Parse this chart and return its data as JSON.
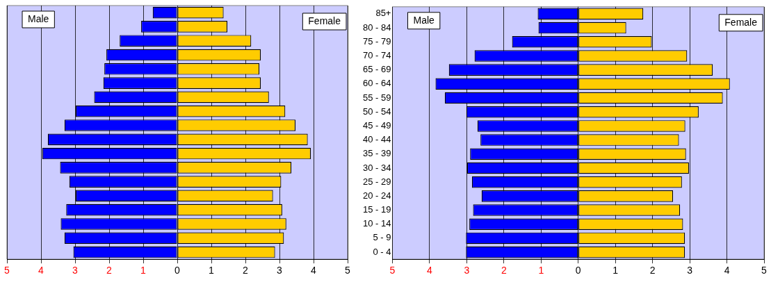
{
  "chart_data": [
    {
      "type": "bar",
      "orientation": "horizontal",
      "stacked": true,
      "grid": "x",
      "tick_labels": "x",
      "annotations": [
        "Male",
        "Female"
      ],
      "categories": [
        null,
        null,
        null,
        null,
        null,
        null,
        null,
        null,
        null,
        null,
        null,
        null,
        null,
        null,
        null,
        null,
        null,
        null
      ],
      "series": [
        {
          "color": "#0000ff",
          "values": [
            -0.72,
            -1.06,
            -1.69,
            -2.08,
            -2.14,
            -2.17,
            -2.44,
            -2.98,
            -3.31,
            -3.8,
            -3.96,
            -3.44,
            -3.17,
            -2.98,
            -3.26,
            -3.42,
            -3.31,
            -3.05
          ]
        },
        {
          "color": "#ffcc00",
          "values": [
            1.36,
            1.47,
            2.17,
            2.45,
            2.41,
            2.45,
            2.69,
            3.17,
            3.47,
            3.83,
            3.92,
            3.35,
            3.05,
            2.81,
            3.08,
            3.2,
            3.13,
            2.87
          ]
        }
      ],
      "xlim": [
        -5,
        5
      ],
      "xticks": [
        {
          "value": -5,
          "label": "5"
        },
        {
          "value": -4,
          "label": "4"
        },
        {
          "value": -3,
          "label": "3"
        },
        {
          "value": -2,
          "label": "2"
        },
        {
          "value": -1,
          "label": "1"
        },
        0,
        1,
        2,
        3,
        4,
        5
      ]
    },
    {
      "type": "bar",
      "orientation": "horizontal",
      "stacked": true,
      "grid": "x",
      "annotations": [
        "Male",
        "Female"
      ],
      "categories": [
        "85+",
        "80 - 84",
        "75 - 79",
        "70 - 74",
        "65 - 69",
        "60 - 64",
        "55 - 59",
        "50 - 54",
        "45 - 49",
        "40 - 44",
        "35 - 39",
        "30 - 34",
        "25 - 29",
        "20 - 24",
        "15 - 19",
        "10 - 14",
        "5 - 9",
        "0 - 4"
      ],
      "series": [
        {
          "color": "#0000ff",
          "values": [
            -1.09,
            -1.07,
            -1.78,
            -2.79,
            -3.48,
            -3.84,
            -3.59,
            -3.01,
            -2.71,
            -2.63,
            -2.91,
            -2.99,
            -2.86,
            -2.6,
            -2.83,
            -2.93,
            -3.02,
            -3.02
          ]
        },
        {
          "color": "#ffcc00",
          "values": [
            1.75,
            1.29,
            1.98,
            2.93,
            3.62,
            4.08,
            3.89,
            3.24,
            2.88,
            2.71,
            2.9,
            2.98,
            2.79,
            2.55,
            2.74,
            2.82,
            2.87,
            2.87
          ]
        }
      ],
      "xlim": [
        -5,
        5
      ],
      "xticks": [
        {
          "value": -5,
          "label": "5"
        },
        {
          "value": -4,
          "label": "4"
        },
        {
          "value": -3,
          "label": "3"
        },
        {
          "value": -2,
          "label": "2"
        },
        {
          "value": -1,
          "label": "1"
        },
        0,
        1,
        2,
        3,
        4,
        5
      ]
    }
  ]
}
